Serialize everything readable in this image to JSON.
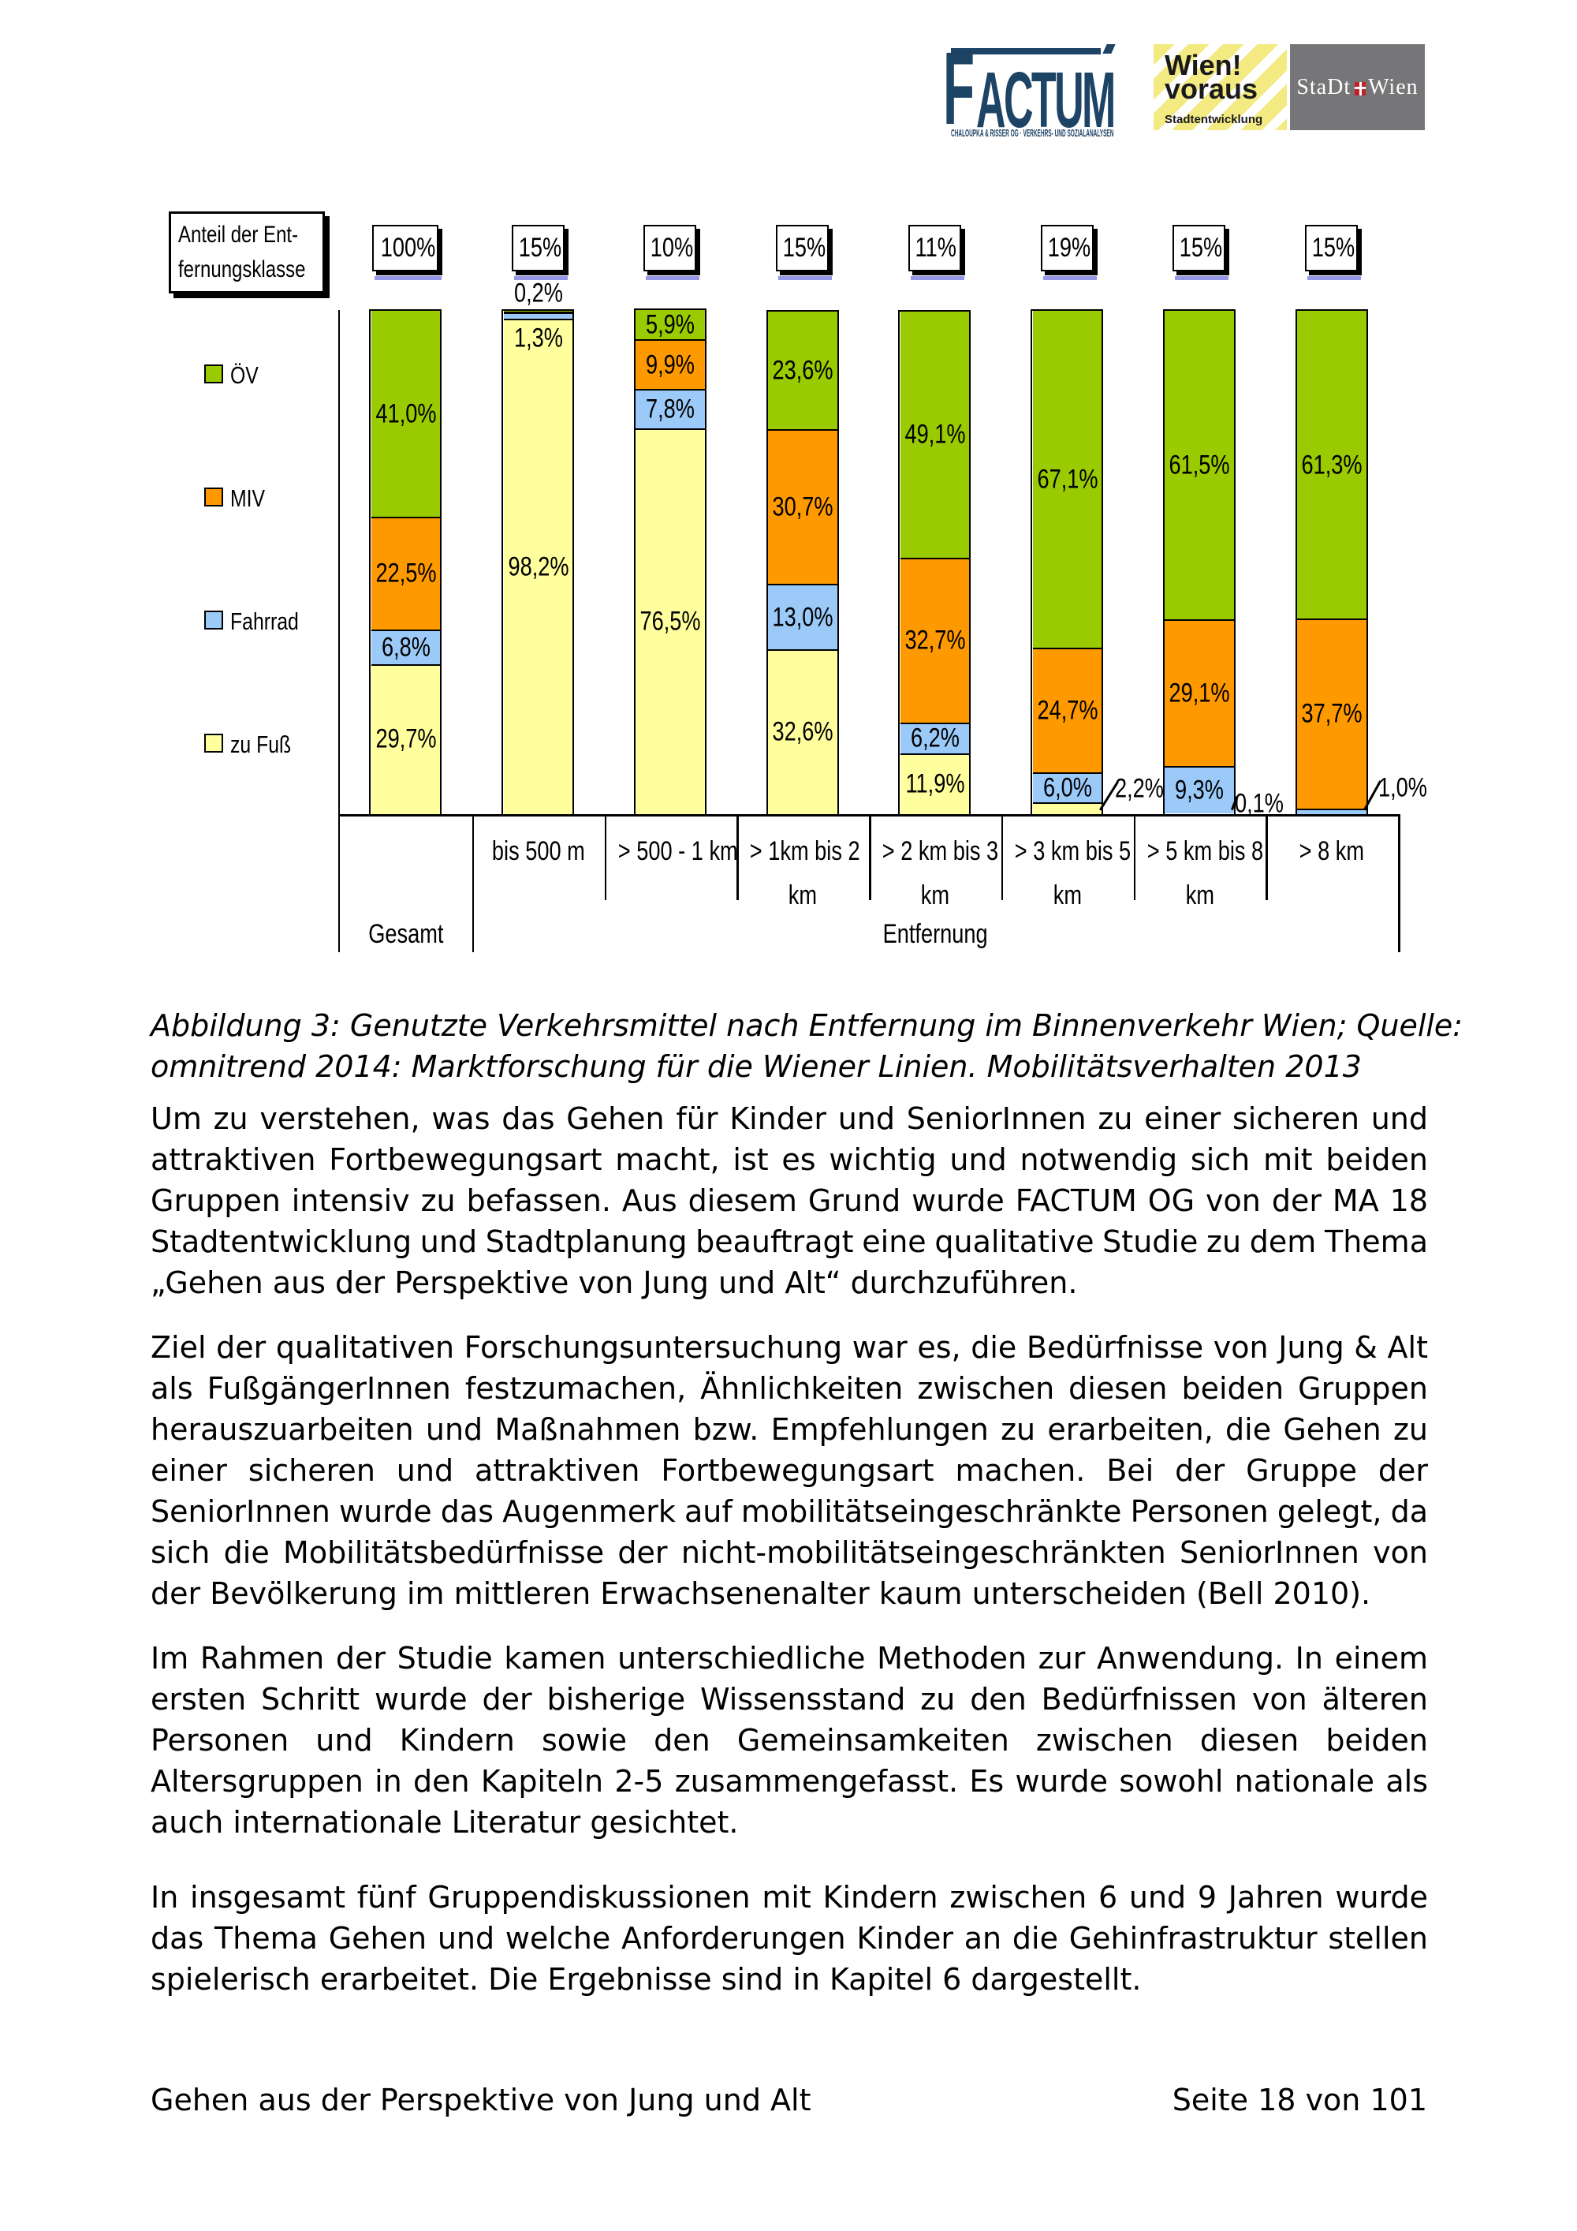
{
  "header": {
    "factum": {
      "name": "FACTUM",
      "subtitle": "CHALOUPKA & RISSER OG · VERKEHRS- UND SOZIALANALYSEN"
    },
    "wien_voraus": {
      "line1": "Wien!",
      "line2": "voraus",
      "subtitle": "Stadtentwicklung"
    },
    "stadt_wien": {
      "part1": "StaDt",
      "part2": "Wien"
    }
  },
  "chart_data": {
    "type": "bar",
    "stacked": true,
    "unit": "percent",
    "ylim": [
      0,
      100
    ],
    "grid": false,
    "legend_position": "left",
    "legend_title_lines": [
      "Anteil der Ent-",
      "fernungsklasse"
    ],
    "legend": [
      {
        "name": "ÖV",
        "color": "#9aca00"
      },
      {
        "name": "MIV",
        "color": "#ff9900"
      },
      {
        "name": "Fahrrad",
        "color": "#9bcaf9"
      },
      {
        "name": "zu Fuß",
        "color": "#ffff9e"
      }
    ],
    "group_labels": {
      "first": "Gesamt",
      "rest": "Entfernung"
    },
    "bars": [
      {
        "category": "Gesamt",
        "category_lines": [],
        "share": "100%",
        "segments": [
          {
            "series": "zu Fuß",
            "value": 29.7,
            "label": "29,7%"
          },
          {
            "series": "Fahrrad",
            "value": 6.8,
            "label": "6,8%"
          },
          {
            "series": "MIV",
            "value": 22.5,
            "label": "22,5%"
          },
          {
            "series": "ÖV",
            "value": 41.0,
            "label": "41,0%"
          }
        ]
      },
      {
        "category": "bis 500 m",
        "category_lines": [
          "bis 500 m"
        ],
        "share": "15%",
        "segments": [
          {
            "series": "zu Fuß",
            "value": 98.2,
            "label": "98,2%"
          },
          {
            "series": "Fahrrad",
            "value": 1.3,
            "label": "1,3%",
            "label_pos": "below"
          },
          {
            "series": "MIV",
            "value": 0.2,
            "label": "0,2%",
            "label_pos": "above"
          },
          {
            "series": "ÖV",
            "value": 0.3,
            "label": ""
          }
        ]
      },
      {
        "category": "> 500 - 1 km",
        "category_lines": [
          "> 500 - 1 km"
        ],
        "share": "10%",
        "segments": [
          {
            "series": "zu Fuß",
            "value": 76.5,
            "label": "76,5%"
          },
          {
            "series": "Fahrrad",
            "value": 7.8,
            "label": "7,8%"
          },
          {
            "series": "MIV",
            "value": 9.9,
            "label": "9,9%"
          },
          {
            "series": "ÖV",
            "value": 5.9,
            "label": "5,9%"
          }
        ]
      },
      {
        "category": "> 1km bis 2 km",
        "category_lines": [
          "> 1km bis 2",
          "km"
        ],
        "share": "15%",
        "segments": [
          {
            "series": "zu Fuß",
            "value": 32.6,
            "label": "32,6%"
          },
          {
            "series": "Fahrrad",
            "value": 13.0,
            "label": "13,0%"
          },
          {
            "series": "MIV",
            "value": 30.7,
            "label": "30,7%"
          },
          {
            "series": "ÖV",
            "value": 23.6,
            "label": "23,6%"
          }
        ]
      },
      {
        "category": "> 2 km bis 3 km",
        "category_lines": [
          "> 2 km bis 3",
          "km"
        ],
        "share": "11%",
        "segments": [
          {
            "series": "zu Fuß",
            "value": 11.9,
            "label": "11,9%"
          },
          {
            "series": "Fahrrad",
            "value": 6.2,
            "label": "6,2%"
          },
          {
            "series": "MIV",
            "value": 32.7,
            "label": "32,7%"
          },
          {
            "series": "ÖV",
            "value": 49.1,
            "label": "49,1%"
          }
        ]
      },
      {
        "category": "> 3 km bis 5 km",
        "category_lines": [
          "> 3 km bis 5",
          "km"
        ],
        "share": "19%",
        "segments": [
          {
            "series": "zu Fuß",
            "value": 2.2,
            "label": "2,2%",
            "label_pos": "outside",
            "label_dx": 14,
            "label_dy": 0
          },
          {
            "series": "Fahrrad",
            "value": 6.0,
            "label": "6,0%"
          },
          {
            "series": "MIV",
            "value": 24.7,
            "label": "24,7%"
          },
          {
            "series": "ÖV",
            "value": 67.1,
            "label": "67,1%"
          }
        ]
      },
      {
        "category": "> 5 km bis 8 km",
        "category_lines": [
          "> 5 km bis 8",
          "km"
        ],
        "share": "15%",
        "segments": [
          {
            "series": "zu Fuß",
            "value": 0.1,
            "label": "0,1%",
            "label_pos": "outside",
            "label_dx": -2,
            "label_dy": 19
          },
          {
            "series": "Fahrrad",
            "value": 9.3,
            "label": "9,3%"
          },
          {
            "series": "MIV",
            "value": 29.1,
            "label": "29,1%"
          },
          {
            "series": "ÖV",
            "value": 61.5,
            "label": "61,5%"
          }
        ]
      },
      {
        "category": "> 8 km",
        "category_lines": [
          "> 8 km"
        ],
        "share": "15%",
        "segments": [
          {
            "series": "zu Fuß",
            "value": 0.0,
            "label": ""
          },
          {
            "series": "Fahrrad",
            "value": 1.0,
            "label": "1,0%",
            "label_pos": "outside",
            "label_dx": 12,
            "label_dy": -1
          },
          {
            "series": "MIV",
            "value": 37.7,
            "label": "37,7%"
          },
          {
            "series": "ÖV",
            "value": 61.3,
            "label": "61,3%"
          }
        ]
      }
    ]
  },
  "caption": {
    "lines": [
      "Abbildung 3: Genutzte Verkehrsmittel nach Entfernung im Binnenverkehr Wien; Quelle:",
      "omnitrend 2014: Marktforschung für die Wiener Linien. Mobilitätsverhalten 2013"
    ]
  },
  "paragraphs": [
    {
      "lines": [
        "Um zu verstehen, was das Gehen für Kinder und SeniorInnen zu einer sicheren und",
        "attraktiven Fortbewegungsart macht, ist es wichtig und notwendig sich mit beiden",
        "Gruppen intensiv zu befassen. Aus diesem Grund wurde FACTUM OG von der MA 18",
        "Stadtentwicklung und Stadtplanung beauftragt eine qualitative Studie zu dem Thema",
        "„Gehen aus der Perspektive von Jung und Alt“ durchzuführen."
      ]
    },
    {
      "lines": [
        "Ziel der qualitativen Forschungsuntersuchung war es, die Bedürfnisse von Jung & Alt",
        "als FußgängerInnen festzumachen, Ähnlichkeiten zwischen diesen beiden Gruppen",
        "herauszuarbeiten und Maßnahmen bzw. Empfehlungen zu erarbeiten, die Gehen zu",
        "einer sicheren und attraktiven Fortbewegungsart machen. Bei der Gruppe der",
        "SeniorInnen wurde das Augenmerk auf mobilitätseingeschränkte Personen gelegt, da",
        "sich die Mobilitätsbedürfnisse der nicht-mobilitätseingeschränkten SeniorInnen von",
        "der Bevölkerung im mittleren Erwachsenenalter kaum unterscheiden (Bell 2010)."
      ]
    },
    {
      "lines": [
        "Im Rahmen der Studie kamen unterschiedliche Methoden zur Anwendung. In einem",
        "ersten Schritt wurde der bisherige Wissensstand zu den Bedürfnissen von älteren",
        "Personen und Kindern sowie den Gemeinsamkeiten zwischen diesen beiden",
        "Altersgruppen in den Kapiteln 2-5 zusammengefasst. Es wurde sowohl nationale als",
        "auch internationale Literatur gesichtet."
      ]
    },
    {
      "lines": [
        "In insgesamt fünf Gruppendiskussionen mit Kindern zwischen 6 und 9 Jahren wurde",
        "das Thema Gehen und welche Anforderungen Kinder an die Gehinfrastruktur stellen",
        "spielerisch erarbeitet. Die Ergebnisse sind in Kapitel 6 dargestellt."
      ]
    }
  ],
  "footer": {
    "left": "Gehen aus der Perspektive von Jung und Alt",
    "right": "Seite 18 von 101"
  }
}
